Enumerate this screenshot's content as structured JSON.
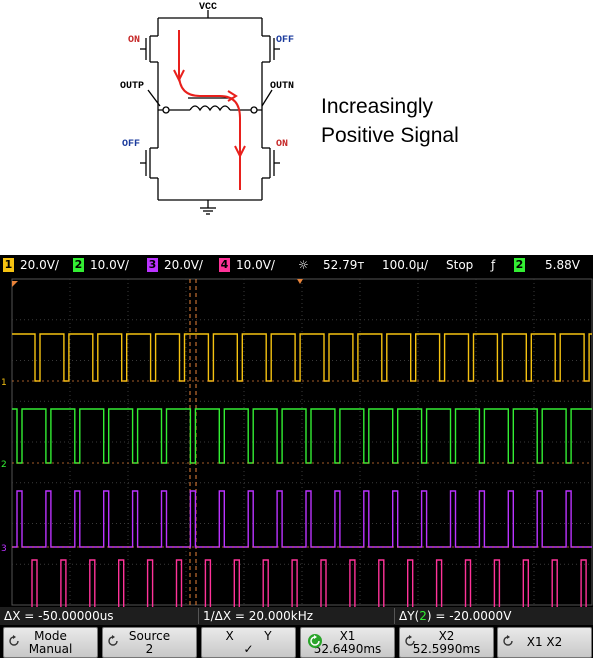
{
  "circuit": {
    "vcc": "VCC",
    "top_left_state": "ON",
    "top_right_state": "OFF",
    "bottom_left_state": "OFF",
    "bottom_right_state": "ON",
    "outp": "OUTP",
    "outn": "OUTN"
  },
  "caption": {
    "line1": "Increasingly",
    "line2": "Positive Signal"
  },
  "scope": {
    "status": {
      "ch1": {
        "num": "1",
        "scale": "20.0V/",
        "color": "#f5c211"
      },
      "ch2": {
        "num": "2",
        "scale": "10.0V/",
        "color": "#33ee33"
      },
      "ch3": {
        "num": "3",
        "scale": "20.0V/",
        "color": "#bb33ff"
      },
      "ch4": {
        "num": "4",
        "scale": "10.0V/",
        "color": "#ff3399"
      },
      "time_ref": "52.79т",
      "time_scale": "100.0µ/",
      "run_state": "Stop",
      "trigger_icon": "ƒ",
      "trig_ch": "2",
      "trig_level": "5.88V"
    },
    "measurements": {
      "delta_x": "ΔX = -50.00000us",
      "inv_delta_x": "1/ΔX = 20.000kHz",
      "delta_y_prefix": "ΔY(",
      "delta_y_ch": "2",
      "delta_y_suffix": ") = -20.0000V"
    },
    "softkeys": [
      {
        "line1": "Mode",
        "line2": "Manual",
        "icon": "rotate-icon"
      },
      {
        "line1": "Source",
        "line2": "2",
        "icon": "rotate-icon"
      },
      {
        "line1": "X        Y",
        "line2": "✓",
        "icon": ""
      },
      {
        "line1": "X1",
        "line2": "52.6490ms",
        "icon": "green-knob-icon"
      },
      {
        "line1": "X2",
        "line2": "52.5990ms",
        "icon": "rotate-icon"
      },
      {
        "line1": "X1 X2",
        "line2": "",
        "icon": "rotate-icon"
      }
    ],
    "traces": {
      "ch1": {
        "color": "#f5c211",
        "polarity": "high",
        "pulse_ms": 0.05
      },
      "ch2": {
        "color": "#33ee33",
        "polarity": "high"
      },
      "ch3": {
        "color": "#bb33ff",
        "polarity": "low"
      },
      "ch4": {
        "color": "#ff3399",
        "polarity": "low"
      }
    }
  }
}
